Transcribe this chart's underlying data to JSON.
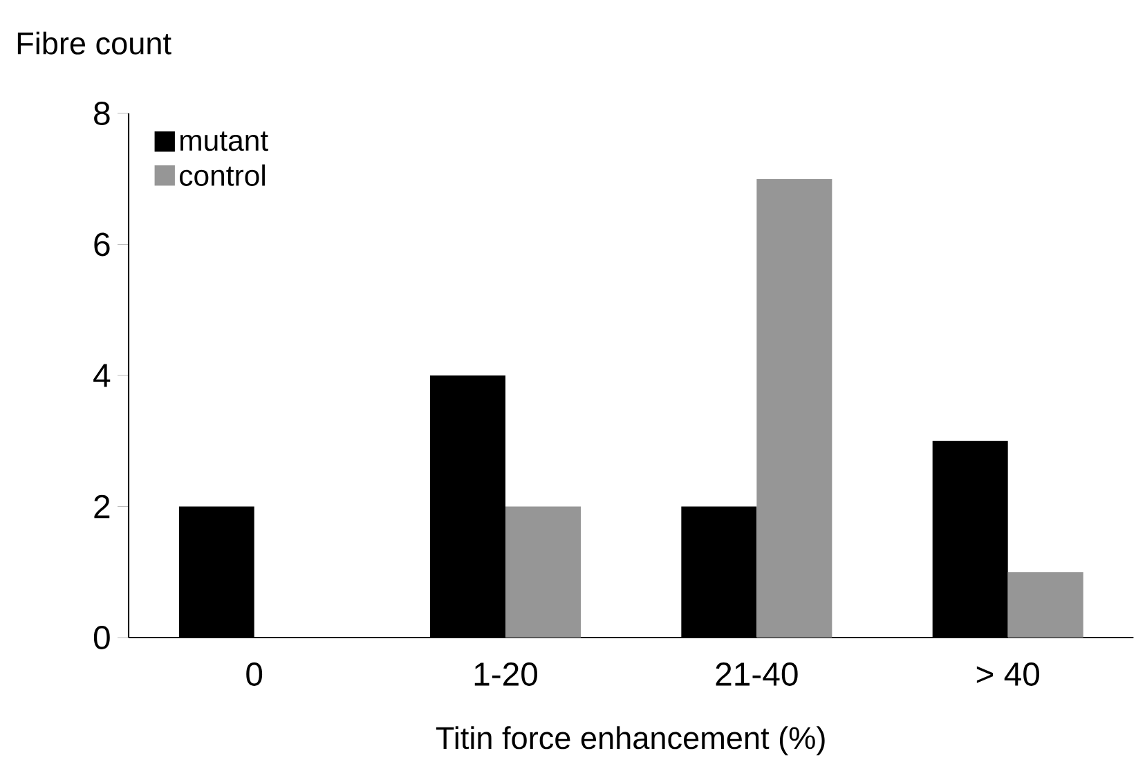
{
  "chart_data": {
    "type": "bar",
    "xlabel": "Titin force enhancement (%)",
    "ylabel": "Fibre count",
    "categories": [
      "0",
      "1-20",
      "21-40",
      "> 40"
    ],
    "series": [
      {
        "name": "mutant",
        "color": "#000000",
        "values": [
          2,
          4,
          2,
          3
        ]
      },
      {
        "name": "control",
        "color": "#969696",
        "values": [
          0,
          2,
          7,
          1
        ]
      }
    ],
    "ylim": [
      0,
      8
    ],
    "yticks": [
      0,
      2,
      4,
      6,
      8
    ],
    "legend": "top left"
  }
}
